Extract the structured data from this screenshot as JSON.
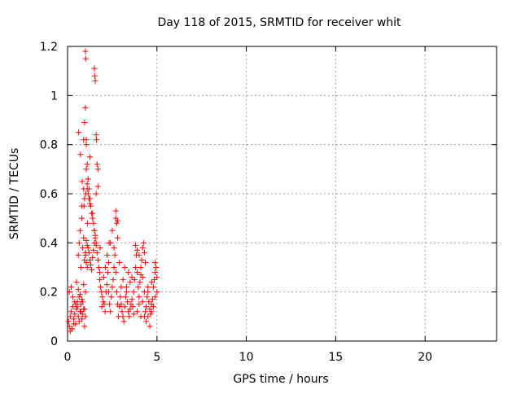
{
  "chart_data": {
    "type": "scatter",
    "title": "Day 118 of 2015, SRMTID for receiver whit",
    "xlabel": "GPS time / hours",
    "ylabel": "SRMTID / TECUs",
    "xlim": [
      0,
      24
    ],
    "ylim": [
      0,
      1.2
    ],
    "xticks": [
      0,
      5,
      10,
      15,
      20
    ],
    "yticks": [
      0,
      0.2,
      0.4,
      0.6,
      0.8,
      1,
      1.2
    ],
    "xtick_labels": [
      "0",
      "5",
      "10",
      "15",
      "20"
    ],
    "ytick_labels": [
      "0",
      "0.2",
      "0.4",
      "0.6",
      "0.8",
      "1",
      "1.2"
    ],
    "grid": true,
    "marker": "+",
    "series_color": "#ff0000",
    "series": [
      {
        "x": [
          0.05,
          0.1,
          0.15,
          0.2,
          0.25,
          0.3,
          0.35,
          0.4,
          0.45,
          0.5,
          0.55,
          0.6,
          0.65,
          0.7,
          0.75,
          0.8,
          0.85,
          0.9,
          0.95,
          1.0,
          0.1,
          0.2,
          0.3,
          0.4,
          0.5,
          0.6,
          0.7,
          0.8,
          0.9,
          1.0,
          0.15,
          0.25,
          0.35,
          0.45,
          0.55,
          0.65,
          0.75,
          0.85,
          0.95,
          0.6,
          0.65,
          0.7,
          0.75,
          0.8,
          0.85,
          0.9,
          0.95,
          1.0,
          1.05,
          1.1,
          0.62,
          0.72,
          0.82,
          0.92,
          1.02,
          1.12,
          0.9,
          0.95,
          1.0,
          1.05,
          1.1,
          1.15,
          1.2,
          1.25,
          1.3,
          1.35,
          1.4,
          1.45,
          1.5,
          1.55,
          1.6,
          1.0,
          1.05,
          1.1,
          1.15,
          1.2,
          1.25,
          1.3,
          1.35,
          1.4,
          1.45,
          1.5,
          1.55,
          1.6,
          1.65,
          1.7,
          1.75,
          1.8,
          1.0,
          1.02,
          1.05,
          1.05,
          1.1,
          1.15,
          1.2,
          1.25,
          1.5,
          1.52,
          1.55,
          1.6,
          1.62,
          1.65,
          1.7,
          0.8,
          0.9,
          0.95,
          1.1,
          1.25,
          1.4,
          1.5,
          1.6,
          1.7,
          1.8,
          1.85,
          1.9,
          1.95,
          2.0,
          2.05,
          2.1,
          2.15,
          2.2,
          2.25,
          2.3,
          1.82,
          1.92,
          2.02,
          2.12,
          2.22,
          2.32,
          2.3,
          2.35,
          2.4,
          2.45,
          2.5,
          2.55,
          2.6,
          2.65,
          2.7,
          2.75,
          2.8,
          2.85,
          2.9,
          2.95,
          3.0,
          2.4,
          2.5,
          2.6,
          2.7,
          2.8,
          2.9,
          2.7,
          2.75,
          2.8,
          3.0,
          3.05,
          3.1,
          3.15,
          3.2,
          3.25,
          3.3,
          3.35,
          3.4,
          3.45,
          3.5,
          3.55,
          3.6,
          3.65,
          3.7,
          3.1,
          3.2,
          3.3,
          3.4,
          3.5,
          3.6,
          3.7,
          3.75,
          3.8,
          3.85,
          3.9,
          3.95,
          4.0,
          4.05,
          4.1,
          4.15,
          4.2,
          4.25,
          4.3,
          4.35,
          3.8,
          3.9,
          4.0,
          4.1,
          4.2,
          4.3,
          3.9,
          4.0,
          4.1,
          4.2,
          4.3,
          4.35,
          4.4,
          4.45,
          4.5,
          4.55,
          4.6,
          4.65,
          4.7,
          4.75,
          4.8,
          4.85,
          4.9,
          4.95,
          5.0,
          4.4,
          4.5,
          4.6,
          4.7,
          4.8,
          4.9,
          5.0,
          4.5,
          4.7,
          4.9
        ],
        "y": [
          0.08,
          0.06,
          0.1,
          0.12,
          0.05,
          0.14,
          0.09,
          0.11,
          0.07,
          0.13,
          0.16,
          0.1,
          0.08,
          0.12,
          0.15,
          0.09,
          0.11,
          0.13,
          0.06,
          0.1,
          0.2,
          0.22,
          0.18,
          0.16,
          0.24,
          0.21,
          0.19,
          0.17,
          0.23,
          0.2,
          0.04,
          0.05,
          0.07,
          0.15,
          0.14,
          0.18,
          0.12,
          0.16,
          0.13,
          0.35,
          0.4,
          0.45,
          0.3,
          0.5,
          0.38,
          0.42,
          0.33,
          0.36,
          0.41,
          0.39,
          0.85,
          0.76,
          0.65,
          0.55,
          0.6,
          0.48,
          0.82,
          0.89,
          0.95,
          0.7,
          0.72,
          0.66,
          0.62,
          0.58,
          0.55,
          0.52,
          0.5,
          0.48,
          0.45,
          0.43,
          0.4,
          0.35,
          0.32,
          0.3,
          0.38,
          0.36,
          0.33,
          0.31,
          0.29,
          0.34,
          0.37,
          0.4,
          0.42,
          0.39,
          0.36,
          0.33,
          0.3,
          0.28,
          1.18,
          1.15,
          0.82,
          0.8,
          0.62,
          0.6,
          0.58,
          0.56,
          1.11,
          1.08,
          1.06,
          0.84,
          0.82,
          0.72,
          0.7,
          0.55,
          0.62,
          0.58,
          0.64,
          0.75,
          0.52,
          0.45,
          0.6,
          0.63,
          0.25,
          0.22,
          0.2,
          0.18,
          0.16,
          0.15,
          0.12,
          0.2,
          0.23,
          0.28,
          0.32,
          0.38,
          0.14,
          0.26,
          0.3,
          0.35,
          0.4,
          0.2,
          0.15,
          0.12,
          0.18,
          0.22,
          0.25,
          0.3,
          0.35,
          0.28,
          0.2,
          0.15,
          0.1,
          0.14,
          0.18,
          0.22,
          0.4,
          0.45,
          0.38,
          0.5,
          0.42,
          0.32,
          0.53,
          0.48,
          0.49,
          0.15,
          0.12,
          0.1,
          0.08,
          0.14,
          0.18,
          0.2,
          0.16,
          0.12,
          0.1,
          0.13,
          0.15,
          0.17,
          0.14,
          0.11,
          0.25,
          0.3,
          0.22,
          0.28,
          0.24,
          0.26,
          0.2,
          0.25,
          0.3,
          0.35,
          0.28,
          0.22,
          0.18,
          0.24,
          0.27,
          0.33,
          0.38,
          0.4,
          0.36,
          0.32,
          0.39,
          0.37,
          0.35,
          0.3,
          0.26,
          0.2,
          0.12,
          0.15,
          0.1,
          0.16,
          0.1,
          0.12,
          0.14,
          0.18,
          0.2,
          0.16,
          0.13,
          0.11,
          0.15,
          0.17,
          0.22,
          0.25,
          0.28,
          0.3,
          0.26,
          0.08,
          0.1,
          0.06,
          0.12,
          0.14,
          0.18,
          0.2,
          0.22,
          0.24,
          0.32
        ]
      }
    ]
  }
}
